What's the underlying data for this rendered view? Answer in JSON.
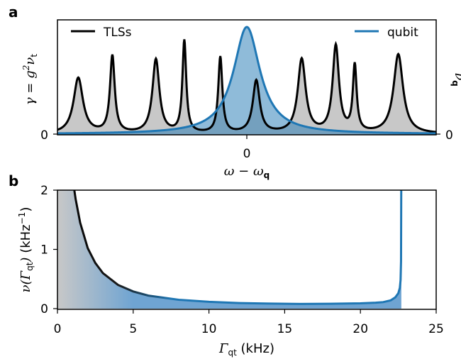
{
  "chart_data": [
    {
      "panel_label": "a",
      "type": "line",
      "xlabel": "ω − ω_q",
      "ylabel_left": "γ = g²ν_t",
      "ylabel_right": "ν_q",
      "x_tick_labels": [
        "0"
      ],
      "y_tick_labels_left": [
        "0"
      ],
      "y_tick_labels_right": [
        "0"
      ],
      "xlim": [
        -1.0,
        1.0
      ],
      "ylim": [
        0,
        1.0
      ],
      "legend": {
        "position": "top",
        "entries": [
          "TLSs",
          "qubit"
        ]
      },
      "series": [
        {
          "name": "TLSs",
          "color": "#000000",
          "fill": "#c8c8c8",
          "peaks": [
            {
              "x": -0.89,
              "height": 0.52,
              "width": 0.03
            },
            {
              "x": -0.71,
              "height": 0.72,
              "width": 0.015
            },
            {
              "x": -0.48,
              "height": 0.69,
              "width": 0.022
            },
            {
              "x": -0.33,
              "height": 0.86,
              "width": 0.012
            },
            {
              "x": -0.14,
              "height": 0.71,
              "width": 0.013
            },
            {
              "x": 0.05,
              "height": 0.49,
              "width": 0.022
            },
            {
              "x": 0.29,
              "height": 0.69,
              "width": 0.025
            },
            {
              "x": 0.47,
              "height": 0.81,
              "width": 0.02
            },
            {
              "x": 0.57,
              "height": 0.62,
              "width": 0.012
            },
            {
              "x": 0.8,
              "height": 0.74,
              "width": 0.03
            }
          ]
        },
        {
          "name": "qubit",
          "color": "#1f77b4",
          "fill": "#6fa4d2",
          "peaks": [
            {
              "x": 0.0,
              "height": 1.0,
              "width": 0.085
            }
          ]
        }
      ]
    },
    {
      "panel_label": "b",
      "type": "area",
      "xlabel": "Γ_qt (kHz)",
      "ylabel": "ν(Γ_qt) (kHz⁻¹)",
      "xlim": [
        0,
        25
      ],
      "ylim": [
        0,
        2
      ],
      "x_ticks": [
        0,
        5,
        10,
        15,
        20,
        25
      ],
      "y_ticks": [
        0,
        1,
        2
      ],
      "series": [
        {
          "name": "",
          "color_start": "#000000",
          "color_end": "#1f77b4",
          "fill_start": "#c8c8c8",
          "fill_end": "#6fa4d2",
          "gamma_max": 22.7,
          "x": [
            0.2,
            0.5,
            0.8,
            1.0,
            1.2,
            1.5,
            2.0,
            2.5,
            3.0,
            4.0,
            5.0,
            6.0,
            8.0,
            10.0,
            12.0,
            14.0,
            16.0,
            18.0,
            20.0,
            21.0,
            21.5,
            22.0,
            22.3,
            22.5,
            22.6,
            22.65,
            22.68,
            22.7
          ],
          "y": [
            2.5,
            2.5,
            2.5,
            2.2,
            1.85,
            1.45,
            1.02,
            0.77,
            0.6,
            0.4,
            0.29,
            0.22,
            0.15,
            0.115,
            0.095,
            0.085,
            0.08,
            0.082,
            0.09,
            0.1,
            0.11,
            0.14,
            0.19,
            0.26,
            0.35,
            0.48,
            0.8,
            2.5
          ]
        }
      ]
    }
  ],
  "panel_labels": {
    "a": "a",
    "b": "b"
  },
  "panel_a": {
    "legend_tls": "TLSs",
    "legend_qubit": "qubit",
    "xtick_zero": "0",
    "ytick_left_zero": "0",
    "ytick_right_zero": "0"
  },
  "panel_b": {
    "xticks": [
      "0",
      "5",
      "10",
      "15",
      "20",
      "25"
    ],
    "yticks": [
      "0",
      "1",
      "2"
    ]
  }
}
